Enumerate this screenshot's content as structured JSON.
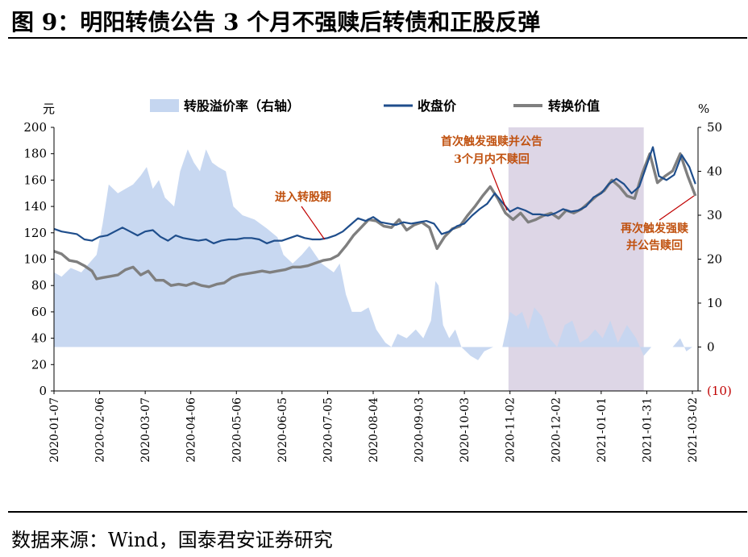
{
  "figure": {
    "title": "图 9：明阳转债公告 3 个月不强赎后转债和正股反弹",
    "source": "数据来源：Wind，国泰君安证券研究"
  },
  "colors": {
    "premium": "#c5d6f0",
    "close": "#1f4e8c",
    "conversion": "#7f7f7f",
    "shade": "#ddd6e6",
    "annotation": "#c0510f",
    "negative_tick": "#c00000"
  },
  "chart_data": {
    "type": "line",
    "x_ticks": [
      "2020-01-07",
      "2020-02-06",
      "2020-03-07",
      "2020-04-06",
      "2020-05-06",
      "2020-06-05",
      "2020-07-05",
      "2020-08-04",
      "2020-09-03",
      "2020-10-03",
      "2020-11-02",
      "2020-12-02",
      "2021-01-01",
      "2021-01-31",
      "2021-03-02"
    ],
    "x_range": [
      "2020-01-07",
      "2021-03-05"
    ],
    "y_left": {
      "unit": "元",
      "range": [
        0,
        200
      ],
      "ticks": [
        0,
        20,
        40,
        60,
        80,
        100,
        120,
        140,
        160,
        180,
        200
      ]
    },
    "y_right": {
      "unit": "%",
      "range": [
        -10,
        50
      ],
      "ticks": [
        "(10)",
        "0",
        "10",
        "20",
        "30",
        "40",
        "50"
      ]
    },
    "shaded_period": [
      "2020-11-01",
      "2021-01-29"
    ],
    "legend": [
      "转股溢价率（右轴）",
      "收盘价",
      "转换价值"
    ],
    "legend_position": "top",
    "annotations": [
      {
        "text": "进入转股期",
        "date": "2020-07-03",
        "value": 115
      },
      {
        "text": "首次触发强赎并公告\n3个月内不赎回",
        "date": "2020-10-31",
        "value": 137
      },
      {
        "text": "再次触发强赎\n并公告赎回",
        "date": "2021-03-03",
        "value": 148
      }
    ],
    "series": [
      {
        "name": "转股溢价率（右轴）",
        "axis": "right",
        "type": "area",
        "points": [
          [
            "2020-01-07",
            17
          ],
          [
            "2020-01-12",
            16
          ],
          [
            "2020-01-18",
            18
          ],
          [
            "2020-01-25",
            17
          ],
          [
            "2020-01-30",
            19
          ],
          [
            "2020-02-04",
            21
          ],
          [
            "2020-02-08",
            28
          ],
          [
            "2020-02-12",
            37
          ],
          [
            "2020-02-18",
            35
          ],
          [
            "2020-02-23",
            36
          ],
          [
            "2020-02-28",
            37
          ],
          [
            "2020-03-04",
            39
          ],
          [
            "2020-03-08",
            41
          ],
          [
            "2020-03-12",
            36
          ],
          [
            "2020-03-16",
            38
          ],
          [
            "2020-03-20",
            34
          ],
          [
            "2020-03-26",
            32
          ],
          [
            "2020-03-30",
            40
          ],
          [
            "2020-04-04",
            45
          ],
          [
            "2020-04-08",
            42
          ],
          [
            "2020-04-12",
            40
          ],
          [
            "2020-04-16",
            45
          ],
          [
            "2020-04-20",
            42
          ],
          [
            "2020-04-24",
            41
          ],
          [
            "2020-04-29",
            40
          ],
          [
            "2020-05-04",
            32
          ],
          [
            "2020-05-10",
            30
          ],
          [
            "2020-05-18",
            29
          ],
          [
            "2020-05-26",
            27
          ],
          [
            "2020-06-02",
            25
          ],
          [
            "2020-06-06",
            21
          ],
          [
            "2020-06-12",
            19
          ],
          [
            "2020-06-18",
            21
          ],
          [
            "2020-06-23",
            23
          ],
          [
            "2020-06-27",
            21
          ],
          [
            "2020-07-01",
            19
          ],
          [
            "2020-07-05",
            18
          ],
          [
            "2020-07-09",
            17
          ],
          [
            "2020-07-13",
            19
          ],
          [
            "2020-07-17",
            12
          ],
          [
            "2020-07-21",
            8
          ],
          [
            "2020-07-27",
            8
          ],
          [
            "2020-08-01",
            9
          ],
          [
            "2020-08-06",
            4
          ],
          [
            "2020-08-12",
            1
          ],
          [
            "2020-08-16",
            0
          ],
          [
            "2020-08-20",
            3
          ],
          [
            "2020-08-26",
            2
          ],
          [
            "2020-09-01",
            4
          ],
          [
            "2020-09-06",
            2
          ],
          [
            "2020-09-11",
            6
          ],
          [
            "2020-09-14",
            15
          ],
          [
            "2020-09-16",
            14
          ],
          [
            "2020-09-19",
            5
          ],
          [
            "2020-09-23",
            2
          ],
          [
            "2020-09-27",
            4
          ],
          [
            "2020-10-01",
            0
          ],
          [
            "2020-10-07",
            -2
          ],
          [
            "2020-10-12",
            -3
          ],
          [
            "2020-10-16",
            -1
          ],
          [
            "2020-10-22",
            0
          ],
          [
            "2020-10-28",
            0
          ],
          [
            "2020-11-02",
            8
          ],
          [
            "2020-11-06",
            7
          ],
          [
            "2020-11-10",
            8
          ],
          [
            "2020-11-14",
            4
          ],
          [
            "2020-11-18",
            9
          ],
          [
            "2020-11-23",
            7
          ],
          [
            "2020-11-28",
            2
          ],
          [
            "2020-12-03",
            0
          ],
          [
            "2020-12-08",
            5
          ],
          [
            "2020-12-13",
            6
          ],
          [
            "2020-12-18",
            1
          ],
          [
            "2020-12-23",
            2
          ],
          [
            "2020-12-28",
            4
          ],
          [
            "2021-01-02",
            2
          ],
          [
            "2021-01-07",
            6
          ],
          [
            "2021-01-12",
            1
          ],
          [
            "2021-01-18",
            5
          ],
          [
            "2021-01-24",
            2
          ],
          [
            "2021-01-29",
            -2
          ],
          [
            "2021-02-03",
            0
          ],
          [
            "2021-02-10",
            0
          ],
          [
            "2021-02-17",
            0
          ],
          [
            "2021-02-22",
            2
          ],
          [
            "2021-02-26",
            -1
          ],
          [
            "2021-03-02",
            0
          ],
          [
            "2021-03-05",
            0
          ]
        ]
      },
      {
        "name": "收盘价",
        "axis": "left",
        "type": "line",
        "points": [
          [
            "2020-01-07",
            123
          ],
          [
            "2020-01-12",
            121
          ],
          [
            "2020-01-17",
            120
          ],
          [
            "2020-01-22",
            119
          ],
          [
            "2020-01-27",
            115
          ],
          [
            "2020-02-01",
            114
          ],
          [
            "2020-02-06",
            117
          ],
          [
            "2020-02-11",
            118
          ],
          [
            "2020-02-16",
            121
          ],
          [
            "2020-02-21",
            124
          ],
          [
            "2020-02-26",
            121
          ],
          [
            "2020-03-02",
            118
          ],
          [
            "2020-03-07",
            121
          ],
          [
            "2020-03-12",
            122
          ],
          [
            "2020-03-17",
            117
          ],
          [
            "2020-03-22",
            114
          ],
          [
            "2020-03-27",
            118
          ],
          [
            "2020-04-01",
            116
          ],
          [
            "2020-04-06",
            115
          ],
          [
            "2020-04-11",
            114
          ],
          [
            "2020-04-16",
            115
          ],
          [
            "2020-04-21",
            112
          ],
          [
            "2020-04-26",
            114
          ],
          [
            "2020-05-01",
            115
          ],
          [
            "2020-05-06",
            115
          ],
          [
            "2020-05-11",
            116
          ],
          [
            "2020-05-16",
            116
          ],
          [
            "2020-05-21",
            115
          ],
          [
            "2020-05-26",
            112
          ],
          [
            "2020-05-31",
            114
          ],
          [
            "2020-06-05",
            114
          ],
          [
            "2020-06-10",
            116
          ],
          [
            "2020-06-15",
            118
          ],
          [
            "2020-06-20",
            116
          ],
          [
            "2020-06-25",
            115
          ],
          [
            "2020-06-30",
            115
          ],
          [
            "2020-07-05",
            116
          ],
          [
            "2020-07-10",
            118
          ],
          [
            "2020-07-15",
            121
          ],
          [
            "2020-07-20",
            126
          ],
          [
            "2020-07-25",
            131
          ],
          [
            "2020-07-30",
            129
          ],
          [
            "2020-08-04",
            132
          ],
          [
            "2020-08-09",
            128
          ],
          [
            "2020-08-14",
            127
          ],
          [
            "2020-08-19",
            126
          ],
          [
            "2020-08-24",
            128
          ],
          [
            "2020-08-29",
            127
          ],
          [
            "2020-09-03",
            128
          ],
          [
            "2020-09-08",
            129
          ],
          [
            "2020-09-13",
            127
          ],
          [
            "2020-09-18",
            119
          ],
          [
            "2020-09-23",
            121
          ],
          [
            "2020-09-28",
            125
          ],
          [
            "2020-10-03",
            127
          ],
          [
            "2020-10-08",
            133
          ],
          [
            "2020-10-13",
            138
          ],
          [
            "2020-10-18",
            142
          ],
          [
            "2020-10-23",
            150
          ],
          [
            "2020-10-28",
            143
          ],
          [
            "2020-11-02",
            136
          ],
          [
            "2020-11-07",
            139
          ],
          [
            "2020-11-12",
            137
          ],
          [
            "2020-11-17",
            134
          ],
          [
            "2020-11-22",
            134
          ],
          [
            "2020-11-27",
            133
          ],
          [
            "2020-12-02",
            135
          ],
          [
            "2020-12-07",
            138
          ],
          [
            "2020-12-12",
            136
          ],
          [
            "2020-12-17",
            137
          ],
          [
            "2020-12-22",
            140
          ],
          [
            "2020-12-27",
            147
          ],
          [
            "2021-01-01",
            150
          ],
          [
            "2021-01-06",
            157
          ],
          [
            "2021-01-11",
            161
          ],
          [
            "2021-01-16",
            157
          ],
          [
            "2021-01-21",
            150
          ],
          [
            "2021-01-26",
            155
          ],
          [
            "2021-01-30",
            168
          ],
          [
            "2021-02-04",
            185
          ],
          [
            "2021-02-08",
            163
          ],
          [
            "2021-02-13",
            160
          ],
          [
            "2021-02-18",
            164
          ],
          [
            "2021-02-23",
            179
          ],
          [
            "2021-02-28",
            170
          ],
          [
            "2021-03-04",
            157
          ]
        ]
      },
      {
        "name": "转换价值",
        "axis": "left",
        "type": "line",
        "points": [
          [
            "2020-01-07",
            106
          ],
          [
            "2020-01-12",
            104
          ],
          [
            "2020-01-17",
            99
          ],
          [
            "2020-01-22",
            98
          ],
          [
            "2020-01-27",
            95
          ],
          [
            "2020-02-01",
            91
          ],
          [
            "2020-02-04",
            85
          ],
          [
            "2020-02-08",
            86
          ],
          [
            "2020-02-13",
            87
          ],
          [
            "2020-02-18",
            88
          ],
          [
            "2020-02-23",
            92
          ],
          [
            "2020-02-28",
            94
          ],
          [
            "2020-03-04",
            88
          ],
          [
            "2020-03-09",
            91
          ],
          [
            "2020-03-14",
            84
          ],
          [
            "2020-03-19",
            84
          ],
          [
            "2020-03-24",
            80
          ],
          [
            "2020-03-29",
            81
          ],
          [
            "2020-04-03",
            80
          ],
          [
            "2020-04-08",
            82
          ],
          [
            "2020-04-13",
            80
          ],
          [
            "2020-04-18",
            79
          ],
          [
            "2020-04-23",
            81
          ],
          [
            "2020-04-28",
            82
          ],
          [
            "2020-05-03",
            86
          ],
          [
            "2020-05-08",
            88
          ],
          [
            "2020-05-13",
            89
          ],
          [
            "2020-05-18",
            90
          ],
          [
            "2020-05-23",
            91
          ],
          [
            "2020-05-28",
            90
          ],
          [
            "2020-06-02",
            91
          ],
          [
            "2020-06-07",
            92
          ],
          [
            "2020-06-12",
            94
          ],
          [
            "2020-06-17",
            94
          ],
          [
            "2020-06-22",
            95
          ],
          [
            "2020-06-27",
            97
          ],
          [
            "2020-07-02",
            99
          ],
          [
            "2020-07-07",
            100
          ],
          [
            "2020-07-12",
            103
          ],
          [
            "2020-07-17",
            110
          ],
          [
            "2020-07-22",
            118
          ],
          [
            "2020-07-27",
            124
          ],
          [
            "2020-08-01",
            130
          ],
          [
            "2020-08-06",
            129
          ],
          [
            "2020-08-11",
            125
          ],
          [
            "2020-08-16",
            124
          ],
          [
            "2020-08-21",
            130
          ],
          [
            "2020-08-26",
            122
          ],
          [
            "2020-08-31",
            126
          ],
          [
            "2020-09-05",
            128
          ],
          [
            "2020-09-10",
            124
          ],
          [
            "2020-09-15",
            108
          ],
          [
            "2020-09-20",
            117
          ],
          [
            "2020-09-25",
            123
          ],
          [
            "2020-09-30",
            125
          ],
          [
            "2020-10-05",
            133
          ],
          [
            "2020-10-10",
            140
          ],
          [
            "2020-10-15",
            148
          ],
          [
            "2020-10-20",
            155
          ],
          [
            "2020-10-25",
            146
          ],
          [
            "2020-10-30",
            135
          ],
          [
            "2020-11-04",
            130
          ],
          [
            "2020-11-09",
            135
          ],
          [
            "2020-11-14",
            128
          ],
          [
            "2020-11-19",
            130
          ],
          [
            "2020-11-24",
            133
          ],
          [
            "2020-11-29",
            135
          ],
          [
            "2020-12-04",
            131
          ],
          [
            "2020-12-09",
            137
          ],
          [
            "2020-12-14",
            135
          ],
          [
            "2020-12-19",
            138
          ],
          [
            "2020-12-24",
            143
          ],
          [
            "2020-12-29",
            148
          ],
          [
            "2021-01-03",
            152
          ],
          [
            "2021-01-08",
            160
          ],
          [
            "2021-01-13",
            155
          ],
          [
            "2021-01-18",
            148
          ],
          [
            "2021-01-23",
            146
          ],
          [
            "2021-01-28",
            165
          ],
          [
            "2021-02-02",
            180
          ],
          [
            "2021-02-07",
            158
          ],
          [
            "2021-02-12",
            163
          ],
          [
            "2021-02-17",
            167
          ],
          [
            "2021-02-22",
            180
          ],
          [
            "2021-02-27",
            163
          ],
          [
            "2021-03-04",
            148
          ]
        ]
      }
    ]
  }
}
